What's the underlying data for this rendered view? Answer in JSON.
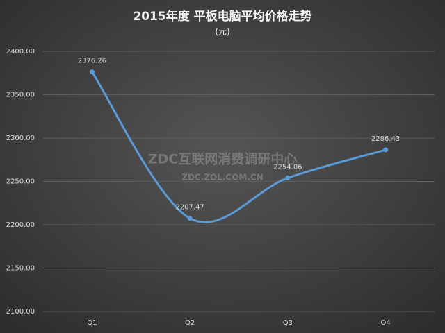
{
  "chart_data": {
    "type": "line",
    "title": "2015年度 平板电脑平均价格走势",
    "subtitle": "(元)",
    "categories": [
      "Q1",
      "Q2",
      "Q3",
      "Q4"
    ],
    "values": [
      2376.26,
      2207.47,
      2254.06,
      2286.43
    ],
    "color": "#5b9bd5",
    "smooth": true,
    "ylim": [
      2100,
      2400
    ],
    "yticks": [
      {
        "value": 2100,
        "label": "2100.00"
      },
      {
        "value": 2150,
        "label": "2150.00"
      },
      {
        "value": 2200,
        "label": "2200.00"
      },
      {
        "value": 2250,
        "label": "2250.00"
      },
      {
        "value": 2300,
        "label": "2300.00"
      },
      {
        "value": 2350,
        "label": "2350.00"
      },
      {
        "value": 2400,
        "label": "2400.00"
      }
    ],
    "grid": true,
    "watermark": [
      "ZDC互联网消费调研中心",
      "ZDC.ZOL.COM.CN"
    ]
  }
}
